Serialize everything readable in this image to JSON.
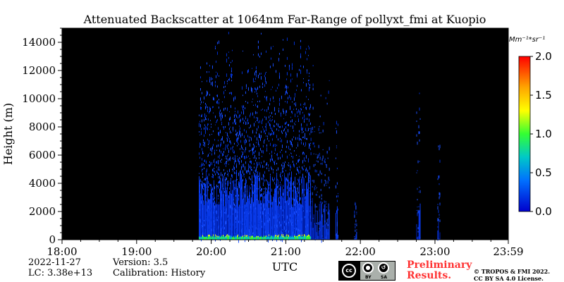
{
  "chart_data": {
    "type": "heatmap",
    "title": "Attenuated Backscatter at 1064nm Far-Range of pollyxt_fmi at Kuopio",
    "xlabel": "UTC",
    "ylabel": "Height (m)",
    "xlim": [
      "18:00",
      "23:59"
    ],
    "ylim": [
      0,
      15000
    ],
    "x_ticks": [
      "18:00",
      "19:00",
      "20:00",
      "21:00",
      "22:00",
      "23:00",
      "23:59"
    ],
    "y_ticks": [
      0,
      2000,
      4000,
      6000,
      8000,
      10000,
      12000,
      14000
    ],
    "colorbar": {
      "unit": "Mm⁻¹*sr⁻¹",
      "range": [
        0.0,
        2.0
      ],
      "ticks": [
        "0.0",
        "0.5",
        "1.0",
        "1.5",
        "2.0"
      ],
      "colormap": [
        "#0000cd",
        "#0070ff",
        "#00c8c8",
        "#33ff33",
        "#ffff00",
        "#ffa500",
        "#ff0000"
      ]
    },
    "background_color": "#000000",
    "signal_periods": [
      {
        "start": "19:50",
        "end": "21:20",
        "max_height": 15000,
        "level": 0.1
      },
      {
        "start": "21:20",
        "end": "21:35",
        "max_height": 15000,
        "level": 0.05
      },
      {
        "start": "21:40",
        "end": "21:42",
        "max_height": 15000,
        "level": 0.05
      },
      {
        "start": "21:55",
        "end": "21:57",
        "max_height": 3000,
        "level": 0.05
      },
      {
        "start": "22:45",
        "end": "22:48",
        "max_height": 15000,
        "level": 0.05
      },
      {
        "start": "23:02",
        "end": "23:04",
        "max_height": 8000,
        "level": 0.05
      }
    ],
    "boundary_layer": {
      "start": "19:50",
      "end": "21:20",
      "height": 250,
      "level": 0.6
    }
  },
  "footer": {
    "date": "2022-11-27",
    "lc": "LC: 3.38e+13",
    "version": "Version: 3.5",
    "calibration": "Calibration: History",
    "preliminary_line1": "Preliminary",
    "preliminary_line2": "Results.",
    "copyright_line1": "© TROPOS & FMI 2022.",
    "copyright_line2": "CC BY SA 4.0 License.",
    "license_by": "BY",
    "license_sa": "SA"
  }
}
